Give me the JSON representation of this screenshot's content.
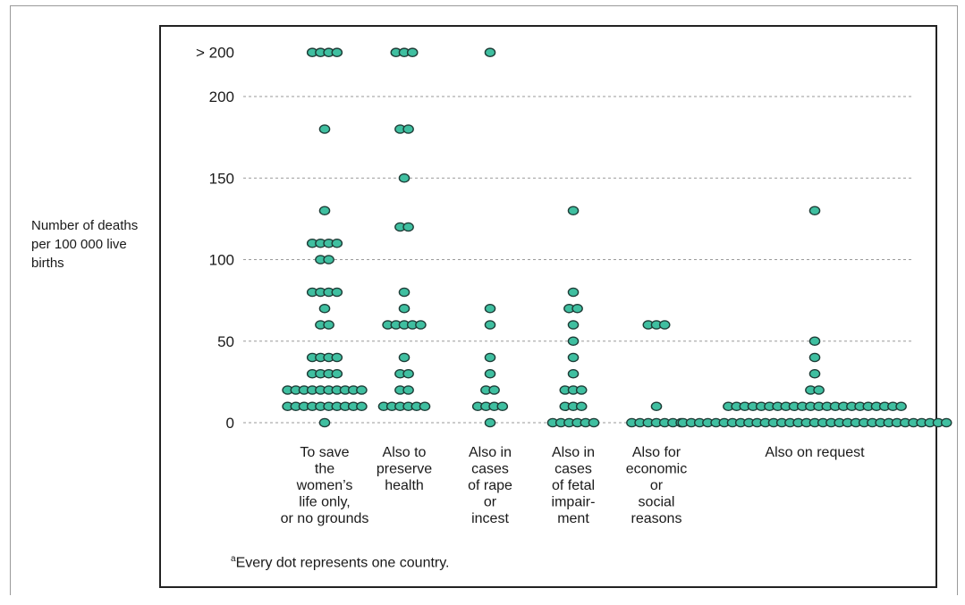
{
  "chart_data": {
    "type": "scatter",
    "subtype": "dot-plot",
    "ylabel": "Number of deaths per 100 000 live births",
    "yticks": [
      {
        "value": 0,
        "label": "0"
      },
      {
        "value": 50,
        "label": "50"
      },
      {
        "value": 100,
        "label": "100"
      },
      {
        "value": 150,
        "label": "150"
      },
      {
        "value": 200,
        "label": "200"
      },
      {
        "value": 227,
        "label": "> 200"
      }
    ],
    "ylim": [
      0,
      227
    ],
    "grid": true,
    "footnote": "Every dot represents one country.",
    "footnote_marker": "a",
    "categories": [
      {
        "label_lines": [
          "To save",
          "the",
          "women’s",
          "life only,",
          "or no grounds"
        ],
        "points": [
          {
            "value": 227,
            "count": 4
          },
          {
            "value": 180,
            "count": 1
          },
          {
            "value": 130,
            "count": 1
          },
          {
            "value": 110,
            "count": 4
          },
          {
            "value": 100,
            "count": 2
          },
          {
            "value": 80,
            "count": 4
          },
          {
            "value": 70,
            "count": 1
          },
          {
            "value": 60,
            "count": 2
          },
          {
            "value": 40,
            "count": 4
          },
          {
            "value": 30,
            "count": 4
          },
          {
            "value": 20,
            "count": 10
          },
          {
            "value": 10,
            "count": 10
          },
          {
            "value": 0,
            "count": 1
          }
        ]
      },
      {
        "label_lines": [
          "Also to",
          "preserve",
          "health"
        ],
        "points": [
          {
            "value": 227,
            "count": 3
          },
          {
            "value": 180,
            "count": 2
          },
          {
            "value": 150,
            "count": 1
          },
          {
            "value": 120,
            "count": 2
          },
          {
            "value": 80,
            "count": 1
          },
          {
            "value": 70,
            "count": 1
          },
          {
            "value": 60,
            "count": 5
          },
          {
            "value": 40,
            "count": 1
          },
          {
            "value": 30,
            "count": 2
          },
          {
            "value": 20,
            "count": 2
          },
          {
            "value": 10,
            "count": 6
          }
        ]
      },
      {
        "label_lines": [
          "Also in",
          "cases",
          "of rape",
          "or",
          "incest"
        ],
        "points": [
          {
            "value": 227,
            "count": 1
          },
          {
            "value": 70,
            "count": 1
          },
          {
            "value": 60,
            "count": 1
          },
          {
            "value": 40,
            "count": 1
          },
          {
            "value": 30,
            "count": 1
          },
          {
            "value": 20,
            "count": 2
          },
          {
            "value": 10,
            "count": 4
          },
          {
            "value": 0,
            "count": 1
          }
        ]
      },
      {
        "label_lines": [
          "Also in",
          "cases",
          "of fetal",
          "impair-",
          "ment"
        ],
        "points": [
          {
            "value": 130,
            "count": 1
          },
          {
            "value": 80,
            "count": 1
          },
          {
            "value": 70,
            "count": 2
          },
          {
            "value": 60,
            "count": 1
          },
          {
            "value": 50,
            "count": 1
          },
          {
            "value": 40,
            "count": 1
          },
          {
            "value": 30,
            "count": 1
          },
          {
            "value": 20,
            "count": 3
          },
          {
            "value": 10,
            "count": 3
          },
          {
            "value": 0,
            "count": 6
          }
        ]
      },
      {
        "label_lines": [
          "Also for",
          "economic",
          "or",
          "social",
          "reasons"
        ],
        "points": [
          {
            "value": 60,
            "count": 3
          },
          {
            "value": 10,
            "count": 1
          },
          {
            "value": 0,
            "count": 7
          }
        ]
      },
      {
        "label_lines": [
          "Also on request"
        ],
        "points": [
          {
            "value": 130,
            "count": 1
          },
          {
            "value": 50,
            "count": 1
          },
          {
            "value": 40,
            "count": 1
          },
          {
            "value": 30,
            "count": 1
          },
          {
            "value": 20,
            "count": 2
          },
          {
            "value": 10,
            "count": 22
          },
          {
            "value": 0,
            "count": 33
          }
        ]
      }
    ]
  }
}
